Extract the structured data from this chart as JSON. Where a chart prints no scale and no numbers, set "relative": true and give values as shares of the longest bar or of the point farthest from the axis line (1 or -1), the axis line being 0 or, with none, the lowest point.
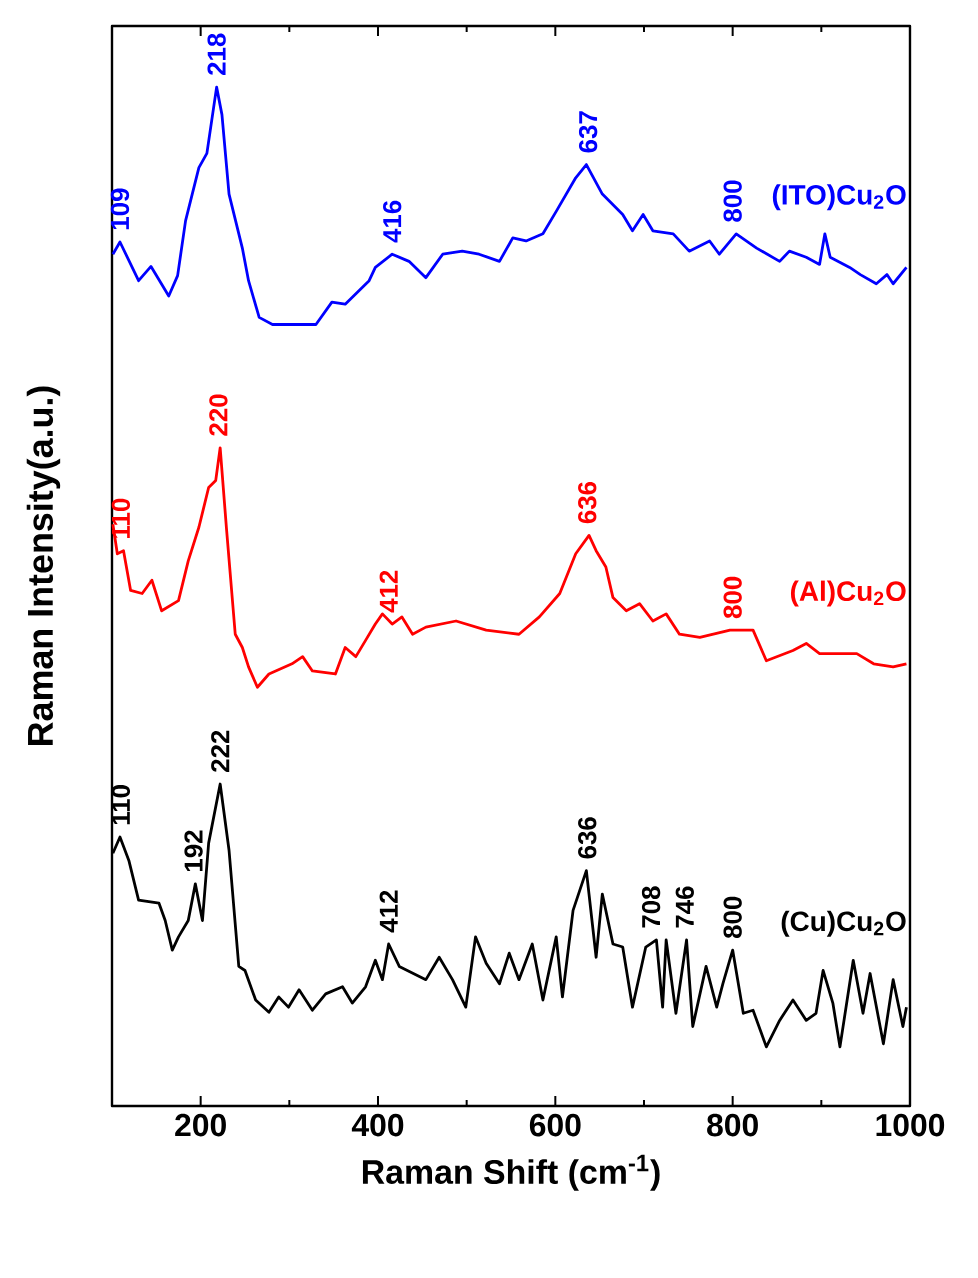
{
  "chart_data": {
    "type": "line",
    "relative": true,
    "xlabel": "Raman Shift (cm$^{-1}$)",
    "ylabel": "Raman Intensity(a.u.)",
    "xlim": [
      100,
      1000
    ],
    "xticks": [
      200,
      400,
      600,
      800,
      1000
    ],
    "marker": "none",
    "line_style": "solid",
    "series": [
      {
        "name": "(ITO)Cu$_{2}$O",
        "color": "#0000ff",
        "x": [
          101,
          109,
          130,
          144,
          164,
          174,
          183,
          198,
          207,
          218,
          224,
          232,
          247,
          254,
          266,
          281,
          311,
          330,
          348,
          363,
          390,
          397,
          416,
          435,
          454,
          473,
          495,
          514,
          537,
          552,
          567,
          586,
          601,
          623,
          635,
          653,
          676,
          687,
          699,
          710,
          733,
          751,
          774,
          785,
          804,
          827,
          853,
          864,
          883,
          898,
          904,
          910,
          932,
          944,
          962,
          974,
          981,
          996
        ],
        "values": [
          0.836,
          0.848,
          0.81,
          0.824,
          0.795,
          0.815,
          0.869,
          0.921,
          0.935,
          1.0,
          0.973,
          0.895,
          0.842,
          0.81,
          0.774,
          0.767,
          0.767,
          0.767,
          0.789,
          0.787,
          0.81,
          0.823,
          0.836,
          0.829,
          0.813,
          0.836,
          0.839,
          0.836,
          0.829,
          0.852,
          0.849,
          0.856,
          0.878,
          0.911,
          0.924,
          0.895,
          0.875,
          0.859,
          0.875,
          0.859,
          0.856,
          0.839,
          0.849,
          0.836,
          0.856,
          0.842,
          0.829,
          0.839,
          0.833,
          0.826,
          0.856,
          0.833,
          0.823,
          0.816,
          0.807,
          0.816,
          0.807,
          0.823
        ]
      },
      {
        "name": "(Al)Cu$_{2}$O",
        "color": "#ff0000",
        "x": [
          101,
          106,
          113,
          121,
          134,
          145,
          156,
          175,
          186,
          198,
          209,
          217,
          222,
          229,
          239,
          247,
          254,
          264,
          277,
          303,
          315,
          326,
          352,
          363,
          375,
          386,
          397,
          405,
          416,
          427,
          439,
          454,
          488,
          522,
          559,
          582,
          605,
          623,
          638,
          646,
          657,
          665,
          680,
          695,
          710,
          725,
          740,
          763,
          797,
          823,
          838,
          868,
          883,
          898,
          940,
          959,
          981,
          996
        ],
        "values": [
          0.571,
          0.542,
          0.545,
          0.506,
          0.503,
          0.516,
          0.486,
          0.496,
          0.535,
          0.568,
          0.607,
          0.614,
          0.646,
          0.568,
          0.463,
          0.45,
          0.431,
          0.411,
          0.424,
          0.434,
          0.441,
          0.427,
          0.424,
          0.45,
          0.441,
          0.457,
          0.473,
          0.483,
          0.473,
          0.48,
          0.463,
          0.47,
          0.476,
          0.467,
          0.463,
          0.48,
          0.503,
          0.542,
          0.56,
          0.545,
          0.529,
          0.499,
          0.486,
          0.493,
          0.476,
          0.483,
          0.463,
          0.46,
          0.467,
          0.467,
          0.437,
          0.447,
          0.454,
          0.444,
          0.444,
          0.434,
          0.431,
          0.434
        ]
      },
      {
        "name": "(Cu)Cu$_{2}$O",
        "color": "#000000",
        "x": [
          101,
          109,
          119,
          130,
          153,
          160,
          168,
          175,
          186,
          194,
          202,
          209,
          222,
          232,
          243,
          250,
          262,
          277,
          288,
          299,
          311,
          326,
          341,
          360,
          371,
          386,
          397,
          405,
          412,
          424,
          454,
          469,
          484,
          499,
          510,
          522,
          537,
          548,
          559,
          574,
          586,
          601,
          608,
          620,
          635,
          646,
          653,
          665,
          676,
          687,
          702,
          714,
          721,
          725,
          736,
          748,
          755,
          770,
          782,
          789,
          800,
          812,
          823,
          838,
          853,
          868,
          883,
          894,
          902,
          913,
          921,
          936,
          947,
          955,
          970,
          981,
          992,
          996
        ],
        "values": [
          0.248,
          0.264,
          0.241,
          0.202,
          0.199,
          0.182,
          0.153,
          0.166,
          0.182,
          0.218,
          0.182,
          0.258,
          0.316,
          0.251,
          0.137,
          0.133,
          0.104,
          0.092,
          0.107,
          0.097,
          0.114,
          0.094,
          0.11,
          0.117,
          0.101,
          0.117,
          0.143,
          0.124,
          0.159,
          0.137,
          0.124,
          0.146,
          0.124,
          0.097,
          0.166,
          0.14,
          0.12,
          0.15,
          0.124,
          0.159,
          0.104,
          0.166,
          0.107,
          0.192,
          0.231,
          0.146,
          0.208,
          0.159,
          0.156,
          0.097,
          0.156,
          0.163,
          0.097,
          0.163,
          0.091,
          0.163,
          0.078,
          0.137,
          0.097,
          0.12,
          0.153,
          0.091,
          0.094,
          0.058,
          0.084,
          0.104,
          0.084,
          0.091,
          0.133,
          0.101,
          0.058,
          0.143,
          0.091,
          0.13,
          0.061,
          0.124,
          0.078,
          0.097
        ]
      }
    ],
    "annotations": [
      {
        "text": "109",
        "x": 109,
        "y": 0.848
      },
      {
        "text": "218",
        "x": 218,
        "y": 1.0
      },
      {
        "text": "416",
        "x": 416,
        "y": 0.836
      },
      {
        "text": "637",
        "x": 637,
        "y": 0.924
      },
      {
        "text": "800",
        "x": 800,
        "y": 0.856
      },
      {
        "text": "110",
        "x": 110,
        "y": 0.545
      },
      {
        "text": "220",
        "x": 220,
        "y": 0.646
      },
      {
        "text": "412",
        "x": 412,
        "y": 0.473
      },
      {
        "text": "636",
        "x": 636,
        "y": 0.56
      },
      {
        "text": "800",
        "x": 800,
        "y": 0.467
      },
      {
        "text": "110",
        "x": 110,
        "y": 0.264
      },
      {
        "text": "192",
        "x": 192,
        "y": 0.218
      },
      {
        "text": "222",
        "x": 222,
        "y": 0.316
      },
      {
        "text": "412",
        "x": 412,
        "y": 0.159
      },
      {
        "text": "636",
        "x": 636,
        "y": 0.231
      },
      {
        "text": "708",
        "x": 708,
        "y": 0.163
      },
      {
        "text": "746",
        "x": 746,
        "y": 0.163
      },
      {
        "text": "800",
        "x": 800,
        "y": 0.153
      }
    ]
  }
}
